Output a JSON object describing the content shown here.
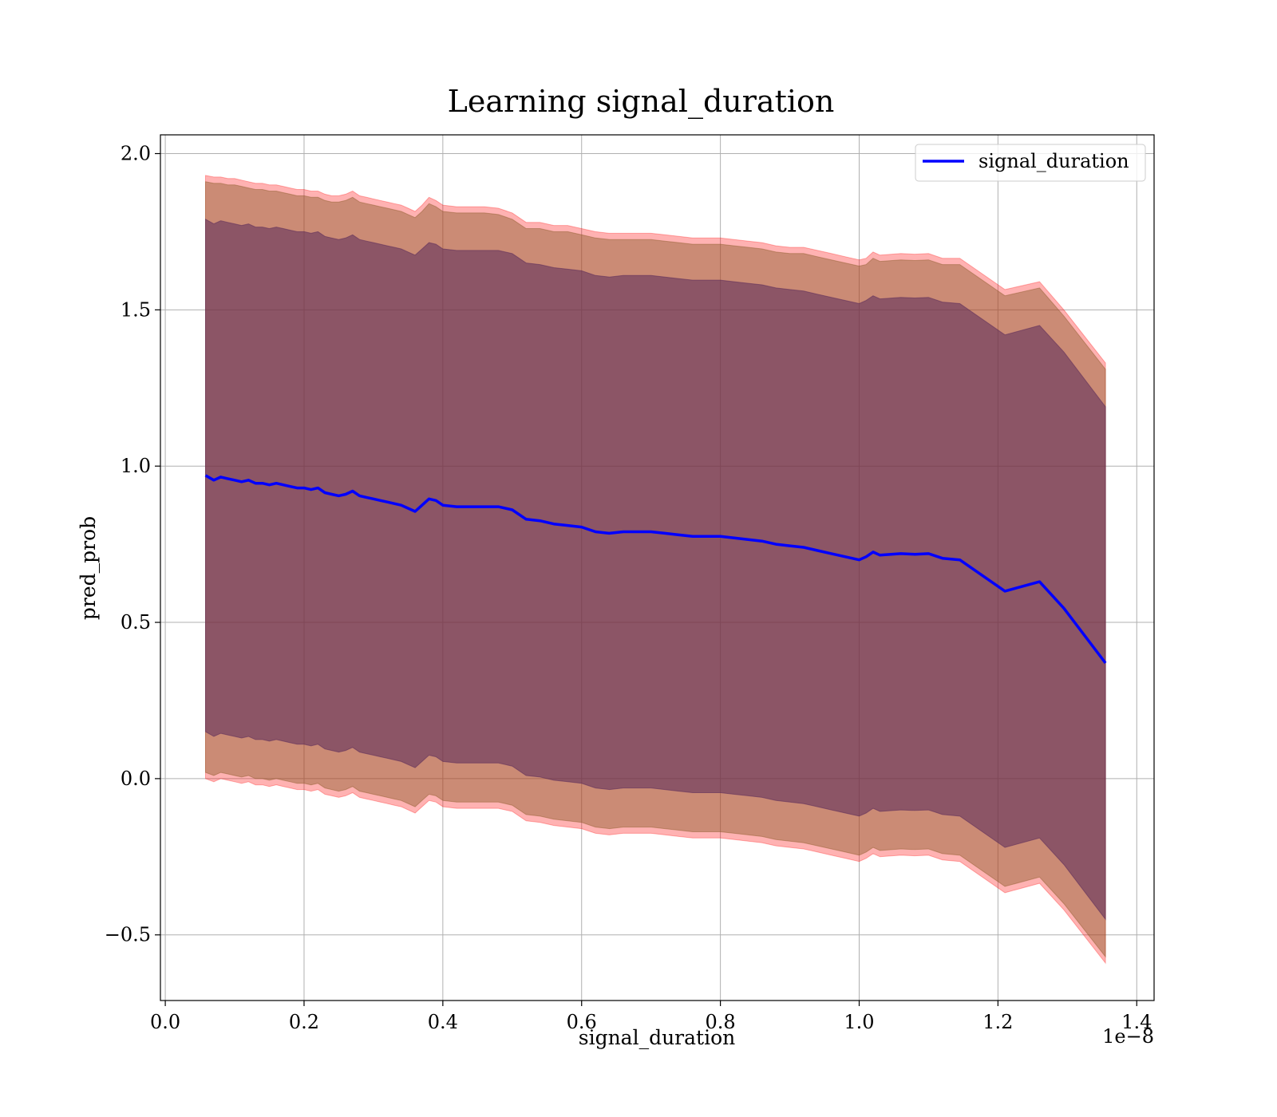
{
  "chart_data": {
    "type": "line",
    "title": "Learning signal_duration",
    "xlabel": "signal_duration",
    "ylabel": "pred_prob",
    "x_offset_label": "1e−8",
    "xlim": [
      -0.007,
      1.425
    ],
    "ylim": [
      -0.71,
      2.06
    ],
    "x_ticks": [
      0.0,
      0.2,
      0.4,
      0.6,
      0.8,
      1.0,
      1.2,
      1.4
    ],
    "x_tick_labels": [
      "0.0",
      "0.2",
      "0.4",
      "0.6",
      "0.8",
      "1.0",
      "1.2",
      "1.4"
    ],
    "y_ticks": [
      -0.5,
      0.0,
      0.5,
      1.0,
      1.5,
      2.0
    ],
    "y_tick_labels": [
      "−0.5",
      "0.0",
      "0.5",
      "1.0",
      "1.5",
      "2.0"
    ],
    "grid": true,
    "legend": {
      "placement": "top-right",
      "entries": [
        "signal_duration"
      ]
    },
    "colors": {
      "line": "#0000ff",
      "band_outer": "#ff0000",
      "band_mid": "#8b5a2b",
      "band_inner": "#5a2a5a",
      "grid": "#b0b0b0"
    },
    "series": [
      {
        "name": "signal_duration",
        "x": [
          0.058,
          0.07,
          0.08,
          0.09,
          0.1,
          0.11,
          0.12,
          0.13,
          0.14,
          0.15,
          0.16,
          0.17,
          0.18,
          0.19,
          0.2,
          0.21,
          0.22,
          0.23,
          0.24,
          0.25,
          0.26,
          0.27,
          0.28,
          0.29,
          0.3,
          0.31,
          0.32,
          0.33,
          0.34,
          0.35,
          0.36,
          0.37,
          0.38,
          0.39,
          0.4,
          0.42,
          0.44,
          0.46,
          0.48,
          0.5,
          0.52,
          0.54,
          0.56,
          0.58,
          0.6,
          0.62,
          0.64,
          0.66,
          0.68,
          0.7,
          0.72,
          0.74,
          0.76,
          0.78,
          0.8,
          0.82,
          0.84,
          0.86,
          0.88,
          0.9,
          0.92,
          0.94,
          0.96,
          0.98,
          1.0,
          1.01,
          1.02,
          1.03,
          1.06,
          1.08,
          1.1,
          1.12,
          1.145,
          1.21,
          1.26,
          1.295,
          1.355
        ],
        "y": [
          0.97,
          0.955,
          0.965,
          0.96,
          0.955,
          0.95,
          0.955,
          0.945,
          0.945,
          0.94,
          0.945,
          0.94,
          0.935,
          0.93,
          0.93,
          0.925,
          0.93,
          0.915,
          0.91,
          0.905,
          0.91,
          0.92,
          0.905,
          0.9,
          0.895,
          0.89,
          0.885,
          0.88,
          0.875,
          0.865,
          0.855,
          0.875,
          0.895,
          0.89,
          0.875,
          0.87,
          0.87,
          0.87,
          0.87,
          0.86,
          0.83,
          0.825,
          0.815,
          0.81,
          0.805,
          0.79,
          0.785,
          0.79,
          0.79,
          0.79,
          0.785,
          0.78,
          0.775,
          0.775,
          0.775,
          0.77,
          0.765,
          0.76,
          0.75,
          0.745,
          0.74,
          0.73,
          0.72,
          0.71,
          0.7,
          0.71,
          0.725,
          0.715,
          0.72,
          0.718,
          0.72,
          0.705,
          0.7,
          0.6,
          0.63,
          0.545,
          0.37
        ],
        "band_outer_upper": [
          1.93,
          1.925,
          1.925,
          1.92,
          1.92,
          1.915,
          1.91,
          1.905,
          1.905,
          1.9,
          1.9,
          1.895,
          1.89,
          1.885,
          1.885,
          1.88,
          1.88,
          1.87,
          1.865,
          1.865,
          1.87,
          1.88,
          1.865,
          1.86,
          1.855,
          1.85,
          1.845,
          1.84,
          1.835,
          1.825,
          1.815,
          1.835,
          1.86,
          1.85,
          1.835,
          1.83,
          1.83,
          1.83,
          1.825,
          1.81,
          1.78,
          1.78,
          1.77,
          1.77,
          1.76,
          1.75,
          1.745,
          1.745,
          1.745,
          1.745,
          1.74,
          1.735,
          1.73,
          1.73,
          1.73,
          1.725,
          1.72,
          1.715,
          1.705,
          1.7,
          1.7,
          1.69,
          1.68,
          1.67,
          1.66,
          1.665,
          1.685,
          1.675,
          1.68,
          1.678,
          1.68,
          1.665,
          1.665,
          1.565,
          1.59,
          1.5,
          1.33
        ],
        "band_outer_lower": [
          0.0,
          -0.01,
          0.0,
          -0.005,
          -0.01,
          -0.015,
          -0.01,
          -0.02,
          -0.02,
          -0.025,
          -0.02,
          -0.025,
          -0.03,
          -0.035,
          -0.035,
          -0.04,
          -0.035,
          -0.05,
          -0.055,
          -0.06,
          -0.055,
          -0.045,
          -0.06,
          -0.065,
          -0.07,
          -0.075,
          -0.08,
          -0.085,
          -0.09,
          -0.1,
          -0.11,
          -0.09,
          -0.07,
          -0.075,
          -0.09,
          -0.095,
          -0.095,
          -0.095,
          -0.095,
          -0.105,
          -0.135,
          -0.14,
          -0.15,
          -0.155,
          -0.16,
          -0.175,
          -0.18,
          -0.175,
          -0.175,
          -0.175,
          -0.18,
          -0.185,
          -0.19,
          -0.19,
          -0.19,
          -0.195,
          -0.2,
          -0.205,
          -0.215,
          -0.22,
          -0.225,
          -0.235,
          -0.245,
          -0.255,
          -0.265,
          -0.255,
          -0.24,
          -0.25,
          -0.245,
          -0.247,
          -0.245,
          -0.26,
          -0.265,
          -0.365,
          -0.335,
          -0.42,
          -0.59
        ],
        "band_mid_upper": [
          1.91,
          1.905,
          1.905,
          1.9,
          1.9,
          1.895,
          1.89,
          1.885,
          1.885,
          1.88,
          1.88,
          1.875,
          1.87,
          1.865,
          1.865,
          1.86,
          1.86,
          1.85,
          1.845,
          1.845,
          1.85,
          1.86,
          1.845,
          1.84,
          1.835,
          1.83,
          1.825,
          1.82,
          1.815,
          1.805,
          1.795,
          1.815,
          1.84,
          1.83,
          1.815,
          1.81,
          1.81,
          1.81,
          1.805,
          1.79,
          1.76,
          1.76,
          1.75,
          1.75,
          1.74,
          1.73,
          1.725,
          1.725,
          1.725,
          1.725,
          1.72,
          1.715,
          1.71,
          1.71,
          1.71,
          1.705,
          1.7,
          1.695,
          1.685,
          1.68,
          1.68,
          1.67,
          1.66,
          1.65,
          1.64,
          1.645,
          1.665,
          1.655,
          1.66,
          1.658,
          1.66,
          1.645,
          1.645,
          1.545,
          1.57,
          1.48,
          1.31
        ],
        "band_mid_lower": [
          0.02,
          0.01,
          0.02,
          0.015,
          0.01,
          0.005,
          0.01,
          0.0,
          0.0,
          -0.005,
          0.0,
          -0.005,
          -0.01,
          -0.015,
          -0.015,
          -0.02,
          -0.015,
          -0.03,
          -0.035,
          -0.04,
          -0.035,
          -0.025,
          -0.04,
          -0.045,
          -0.05,
          -0.055,
          -0.06,
          -0.065,
          -0.07,
          -0.08,
          -0.09,
          -0.07,
          -0.05,
          -0.055,
          -0.07,
          -0.075,
          -0.075,
          -0.075,
          -0.075,
          -0.085,
          -0.115,
          -0.12,
          -0.13,
          -0.135,
          -0.14,
          -0.155,
          -0.16,
          -0.155,
          -0.155,
          -0.155,
          -0.16,
          -0.165,
          -0.17,
          -0.17,
          -0.17,
          -0.175,
          -0.18,
          -0.185,
          -0.195,
          -0.2,
          -0.205,
          -0.215,
          -0.225,
          -0.235,
          -0.245,
          -0.235,
          -0.22,
          -0.23,
          -0.225,
          -0.227,
          -0.225,
          -0.24,
          -0.245,
          -0.345,
          -0.315,
          -0.4,
          -0.57
        ],
        "band_inner_upper": [
          1.79,
          1.775,
          1.785,
          1.78,
          1.775,
          1.77,
          1.775,
          1.765,
          1.765,
          1.76,
          1.765,
          1.76,
          1.755,
          1.75,
          1.75,
          1.745,
          1.75,
          1.735,
          1.73,
          1.725,
          1.73,
          1.74,
          1.725,
          1.72,
          1.715,
          1.71,
          1.705,
          1.7,
          1.695,
          1.685,
          1.675,
          1.695,
          1.715,
          1.71,
          1.695,
          1.69,
          1.69,
          1.69,
          1.69,
          1.68,
          1.65,
          1.645,
          1.635,
          1.63,
          1.625,
          1.61,
          1.605,
          1.61,
          1.61,
          1.61,
          1.605,
          1.6,
          1.595,
          1.595,
          1.595,
          1.59,
          1.585,
          1.58,
          1.57,
          1.565,
          1.56,
          1.55,
          1.54,
          1.53,
          1.52,
          1.53,
          1.545,
          1.535,
          1.54,
          1.538,
          1.54,
          1.525,
          1.52,
          1.42,
          1.45,
          1.365,
          1.19
        ],
        "band_inner_lower": [
          0.15,
          0.135,
          0.145,
          0.14,
          0.135,
          0.13,
          0.135,
          0.125,
          0.125,
          0.12,
          0.125,
          0.12,
          0.115,
          0.11,
          0.11,
          0.105,
          0.11,
          0.095,
          0.09,
          0.085,
          0.09,
          0.1,
          0.085,
          0.08,
          0.075,
          0.07,
          0.065,
          0.06,
          0.055,
          0.045,
          0.035,
          0.055,
          0.075,
          0.07,
          0.055,
          0.05,
          0.05,
          0.05,
          0.05,
          0.04,
          0.01,
          0.005,
          -0.005,
          -0.01,
          -0.015,
          -0.03,
          -0.035,
          -0.03,
          -0.03,
          -0.03,
          -0.035,
          -0.04,
          -0.045,
          -0.045,
          -0.045,
          -0.05,
          -0.055,
          -0.06,
          -0.07,
          -0.075,
          -0.08,
          -0.09,
          -0.1,
          -0.11,
          -0.12,
          -0.11,
          -0.095,
          -0.105,
          -0.1,
          -0.102,
          -0.1,
          -0.115,
          -0.12,
          -0.22,
          -0.19,
          -0.275,
          -0.45
        ]
      }
    ]
  }
}
